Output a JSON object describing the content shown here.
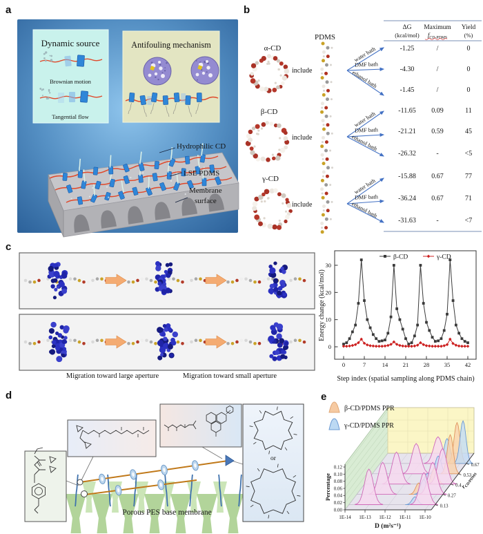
{
  "panels": {
    "a": "a",
    "b": "b",
    "c": "c",
    "d": "d",
    "e": "e"
  },
  "panel_a": {
    "dynamic_source_title": "Dynamic source",
    "brownian_label": "Brownian motion",
    "tangential_label": "Tangential flow",
    "antifouling_title": "Antifouling mechanism",
    "label_hydrophilic_cd": "Hydrophilic CD",
    "label_lse_pdms": "LSE PDMS",
    "label_membrane_line1": "Membrane",
    "label_membrane_line2": "surface"
  },
  "panel_b": {
    "pdms_label": "PDMS",
    "include_label": "include",
    "bath_labels": [
      "water bath",
      "DMF bath",
      "ethanol bath"
    ],
    "header": {
      "dg_line1": "ΔG",
      "dg_line2": "(kcal/mol)",
      "max_line1": "Maximum",
      "max_f": "f",
      "max_sub": "CD-PDMS",
      "yield_line1": "Yield",
      "yield_line2": "(%)"
    },
    "cd_groups": [
      {
        "label": "α-CD",
        "rows": [
          {
            "dg": "-1.25",
            "fmax": "/",
            "yield": "0"
          },
          {
            "dg": "-4.30",
            "fmax": "/",
            "yield": "0"
          },
          {
            "dg": "-1.45",
            "fmax": "/",
            "yield": "0"
          }
        ]
      },
      {
        "label": "β-CD",
        "rows": [
          {
            "dg": "-11.65",
            "fmax": "0.09",
            "yield": "11"
          },
          {
            "dg": "-21.21",
            "fmax": "0.59",
            "yield": "45"
          },
          {
            "dg": "-26.32",
            "fmax": "-",
            "yield": "<5"
          }
        ]
      },
      {
        "label": "γ-CD",
        "rows": [
          {
            "dg": "-15.88",
            "fmax": "0.67",
            "yield": "77"
          },
          {
            "dg": "-36.24",
            "fmax": "0.67",
            "yield": "71"
          },
          {
            "dg": "-31.63",
            "fmax": "-",
            "yield": "<7"
          }
        ]
      }
    ]
  },
  "panel_c": {
    "caption_left": "Migration toward large aperture",
    "caption_right": "Migration toward small aperture"
  },
  "panel_d": {
    "membrane_label": "Porous PES base membrane",
    "or_label": "or"
  },
  "chart_data": [
    {
      "type": "line",
      "title": "",
      "xlabel": "Step index (spatial sampling along PDMS chain)",
      "ylabel": "Energy change (kcal/mol)",
      "x_ticks": [
        0,
        7,
        14,
        21,
        28,
        35,
        42
      ],
      "y_ticks": [
        0,
        10,
        20,
        30
      ],
      "xlim": [
        -1.5,
        43.5
      ],
      "ylim": [
        -4.5,
        35.5
      ],
      "x_step": 1,
      "grid": false,
      "legend_position": "top-inside",
      "series": [
        {
          "name": "β-CD",
          "color": "#3a3a3a",
          "marker": "square",
          "values": [
            1,
            1.5,
            3,
            5.5,
            8,
            16,
            32,
            17,
            10,
            7,
            4.5,
            3,
            2,
            2.2,
            2.5,
            5,
            11,
            30,
            14,
            10,
            6.5,
            3,
            1,
            1.5,
            4,
            8,
            30,
            16,
            9,
            6,
            3.5,
            2,
            2.2,
            3,
            6,
            12,
            32,
            17,
            8,
            5,
            3,
            2,
            1.5
          ]
        },
        {
          "name": "γ-CD",
          "color": "#cc2020",
          "marker": "diamond",
          "values": [
            0.2,
            0.2,
            0.3,
            0.5,
            0.8,
            1.5,
            2.8,
            1.3,
            0.7,
            0.4,
            0.3,
            0.2,
            0.2,
            0.2,
            0.3,
            0.5,
            0.9,
            1.8,
            0.9,
            0.5,
            0.3,
            0.2,
            0.2,
            0.2,
            0.3,
            0.6,
            1.5,
            0.8,
            0.4,
            0.3,
            0.2,
            0.2,
            0.2,
            0.2,
            0.4,
            0.8,
            2.8,
            1.2,
            0.6,
            0.3,
            0.2,
            0.2,
            0.2
          ]
        }
      ]
    },
    {
      "type": "ridgeline-3d",
      "xlabel": "D (m²s⁻¹)",
      "x_ticks": [
        "1E-14",
        "1E-13",
        "1E-12",
        "1E-11",
        "1E-10"
      ],
      "ylabel": "Percentage",
      "y_ticks": [
        "0.00",
        "0.02",
        "0.04",
        "0.06",
        "0.08",
        "0.10",
        "0.12"
      ],
      "zlabel_main": "r",
      "zlabel_sub": "CD/PDMS",
      "z_ticks": [
        "0.13",
        "0.27",
        "0.4",
        "0.53",
        "0.67"
      ],
      "legend": [
        {
          "name": "β-CD/PDMS PPR",
          "series": "beta",
          "color": "#f6caa2"
        },
        {
          "name": "γ-CD/PDMS PPR",
          "series": "gamma",
          "color": "#bcd9f3"
        }
      ],
      "series_colors": {
        "pink": "#f7d9ef",
        "beta": "#f8d3ae",
        "gamma": "#c3dcf4"
      },
      "rows": [
        {
          "r": 0.13,
          "peaks": [
            {
              "logD": -13.0,
              "height": 0.1,
              "series": "pink"
            },
            {
              "logD": -10.7,
              "height": 0.022,
              "series": "gamma"
            },
            {
              "logD": -10.25,
              "height": 0.09,
              "series": "pink"
            }
          ]
        },
        {
          "r": 0.27,
          "peaks": [
            {
              "logD": -12.7,
              "height": 0.09,
              "series": "pink"
            },
            {
              "logD": -10.9,
              "height": 0.032,
              "series": "beta"
            },
            {
              "logD": -10.65,
              "height": 0.042,
              "series": "gamma"
            },
            {
              "logD": -10.2,
              "height": 0.09,
              "series": "pink"
            }
          ]
        },
        {
          "r": 0.4,
          "peaks": [
            {
              "logD": -12.4,
              "height": 0.09,
              "series": "pink"
            },
            {
              "logD": -10.85,
              "height": 0.03,
              "series": "gamma"
            },
            {
              "logD": -10.5,
              "height": 0.045,
              "series": "beta"
            },
            {
              "logD": -10.1,
              "height": 0.1,
              "series": "pink"
            }
          ]
        },
        {
          "r": 0.53,
          "peaks": [
            {
              "logD": -11.8,
              "height": 0.085,
              "series": "pink"
            },
            {
              "logD": -10.7,
              "height": 0.05,
              "series": "gamma"
            },
            {
              "logD": -10.1,
              "height": 0.11,
              "series": "beta"
            }
          ]
        },
        {
          "r": 0.67,
          "peaks": [
            {
              "logD": -11.1,
              "height": 0.075,
              "series": "pink"
            },
            {
              "logD": -10.65,
              "height": 0.07,
              "series": "gamma"
            },
            {
              "logD": -10.15,
              "height": 0.115,
              "series": "beta"
            },
            {
              "logD": -9.85,
              "height": 0.12,
              "series": "gamma"
            }
          ]
        }
      ]
    }
  ]
}
